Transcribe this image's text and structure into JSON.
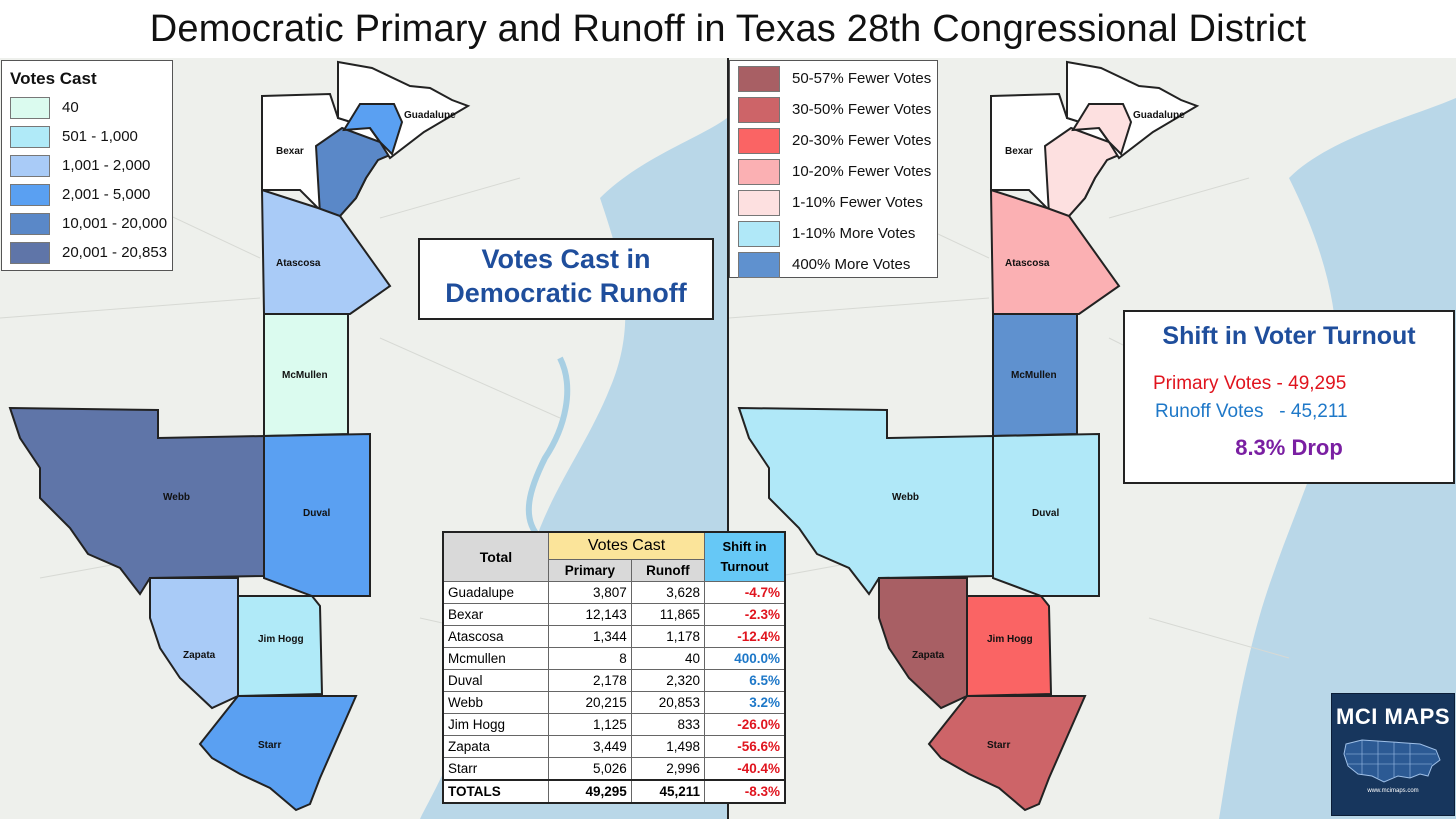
{
  "title": "Democratic Primary and Runoff in Texas 28th Congressional District",
  "left_map": {
    "legend": {
      "title": "Votes Cast",
      "items": [
        {
          "label": "40",
          "color": "#dbfbef"
        },
        {
          "label": "501 - 1,000",
          "color": "#b0eaf8"
        },
        {
          "label": "1,001 - 2,000",
          "color": "#a9cbf7"
        },
        {
          "label": "2,001 - 5,000",
          "color": "#5aa0f2"
        },
        {
          "label": "10,001 - 20,000",
          "color": "#5a88c8"
        },
        {
          "label": "20,001 - 20,853",
          "color": "#5f75a8"
        }
      ]
    },
    "callout": {
      "line1": "Votes Cast in",
      "line2": "Democratic Runoff"
    },
    "counties": [
      {
        "name": "Guadalupe",
        "color": "#5aa0f2"
      },
      {
        "name": "Bexar",
        "color": "#5a88c8"
      },
      {
        "name": "Atascosa",
        "color": "#a9cbf7"
      },
      {
        "name": "McMullen",
        "color": "#dbfbef"
      },
      {
        "name": "Webb",
        "color": "#5f75a8"
      },
      {
        "name": "Duval",
        "color": "#5aa0f2"
      },
      {
        "name": "Jim Hogg",
        "color": "#b0eaf8"
      },
      {
        "name": "Zapata",
        "color": "#a9cbf7"
      },
      {
        "name": "Starr",
        "color": "#5aa0f2"
      }
    ]
  },
  "right_map": {
    "legend": {
      "items": [
        {
          "label": "50-57% Fewer Votes",
          "color": "#a85f64"
        },
        {
          "label": "30-50% Fewer Votes",
          "color": "#cd6468"
        },
        {
          "label": "20-30% Fewer Votes",
          "color": "#fa6464"
        },
        {
          "label": "10-20% Fewer Votes",
          "color": "#fbb0b3"
        },
        {
          "label": "1-10% Fewer Votes",
          "color": "#fde0e0"
        },
        {
          "label": "1-10% More Votes",
          "color": "#b0e8f8"
        },
        {
          "label": "400% More Votes",
          "color": "#5f91cf"
        }
      ]
    },
    "callout": {
      "title": "Shift in Voter Turnout",
      "primary": "Primary Votes - 49,295",
      "runoff": "Runoff Votes   - 45,211",
      "drop": "8.3% Drop",
      "primary_color": "#e0141e",
      "runoff_color": "#1e78c8",
      "drop_color": "#7a1fa2"
    },
    "counties": [
      {
        "name": "Guadalupe",
        "color": "#fde0e0"
      },
      {
        "name": "Bexar",
        "color": "#fde0e0"
      },
      {
        "name": "Atascosa",
        "color": "#fbb0b3"
      },
      {
        "name": "McMullen",
        "color": "#5f91cf"
      },
      {
        "name": "Webb",
        "color": "#b0e8f8"
      },
      {
        "name": "Duval",
        "color": "#b0e8f8"
      },
      {
        "name": "Jim Hogg",
        "color": "#fa6464"
      },
      {
        "name": "Zapata",
        "color": "#a85f64"
      },
      {
        "name": "Starr",
        "color": "#cd6468"
      }
    ]
  },
  "table": {
    "header_total": "Total",
    "header_votes_cast": "Votes Cast",
    "header_primary": "Primary",
    "header_runoff": "Runoff",
    "header_shift_line1": "Shift in",
    "header_shift_line2": "Turnout",
    "rows": [
      {
        "county": "Guadalupe",
        "primary": "3,807",
        "runoff": "3,628",
        "shift": "-4.7%",
        "sign": "neg"
      },
      {
        "county": "Bexar",
        "primary": "12,143",
        "runoff": "11,865",
        "shift": "-2.3%",
        "sign": "neg"
      },
      {
        "county": "Atascosa",
        "primary": "1,344",
        "runoff": "1,178",
        "shift": "-12.4%",
        "sign": "neg"
      },
      {
        "county": "Mcmullen",
        "primary": "8",
        "runoff": "40",
        "shift": "400.0%",
        "sign": "pos"
      },
      {
        "county": "Duval",
        "primary": "2,178",
        "runoff": "2,320",
        "shift": "6.5%",
        "sign": "pos"
      },
      {
        "county": "Webb",
        "primary": "20,215",
        "runoff": "20,853",
        "shift": "3.2%",
        "sign": "pos"
      },
      {
        "county": "Jim Hogg",
        "primary": "1,125",
        "runoff": "833",
        "shift": "-26.0%",
        "sign": "neg"
      },
      {
        "county": "Zapata",
        "primary": "3,449",
        "runoff": "1,498",
        "shift": "-56.6%",
        "sign": "neg"
      },
      {
        "county": "Starr",
        "primary": "5,026",
        "runoff": "2,996",
        "shift": "-40.4%",
        "sign": "neg"
      }
    ],
    "totals": {
      "label": "TOTALS",
      "primary": "49,295",
      "runoff": "45,211",
      "shift": "-8.3%"
    }
  },
  "logo": {
    "text": "MCI MAPS",
    "url_text": "www.mcimaps.com"
  }
}
